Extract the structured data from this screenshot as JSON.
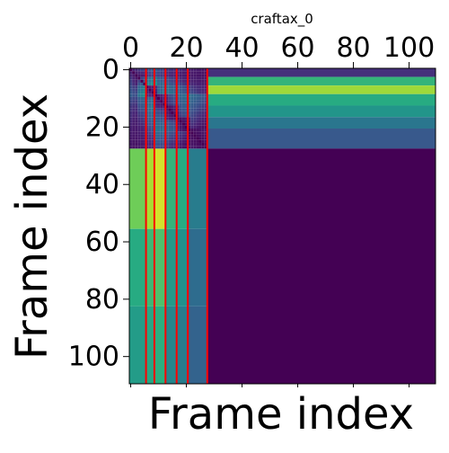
{
  "chart_data": {
    "type": "heatmap",
    "title": "craftax_0",
    "xlabel": "Frame index",
    "ylabel": "Frame index",
    "x_ticks": [
      0,
      20,
      40,
      60,
      80,
      100
    ],
    "y_ticks": [
      0,
      20,
      40,
      60,
      80,
      100
    ],
    "x_minor_ticks": [
      0,
      20,
      40,
      60,
      80,
      100
    ],
    "xlim": [
      -0.5,
      109.5
    ],
    "ylim": [
      109.5,
      -0.5
    ],
    "matrix_size": 110,
    "x_axis_position": "top",
    "colormap": "viridis",
    "grid": false,
    "legend": "none",
    "red_boundaries": [
      5.5,
      8.5,
      12.5,
      16.5,
      20.5,
      27.5
    ],
    "boundary_color": "#ff0000",
    "column_bands": [
      {
        "x0": -0.5,
        "x1": 5.5,
        "values": [
          0.78,
          0.62,
          0.55
        ]
      },
      {
        "x0": 5.5,
        "x1": 8.5,
        "values": [
          0.88,
          0.68,
          0.6
        ]
      },
      {
        "x0": 8.5,
        "x1": 12.5,
        "values": [
          0.94,
          0.72,
          0.64
        ]
      },
      {
        "x0": 12.5,
        "x1": 16.5,
        "values": [
          0.66,
          0.54,
          0.46
        ]
      },
      {
        "x0": 16.5,
        "x1": 20.5,
        "values": [
          0.62,
          0.5,
          0.42
        ]
      },
      {
        "x0": 20.5,
        "x1": 27.5,
        "values": [
          0.42,
          0.36,
          0.32
        ]
      }
    ],
    "right_bands": [
      {
        "y0": -0.5,
        "y1": 2.5,
        "value": 0.16
      },
      {
        "y0": 2.5,
        "y1": 5.5,
        "value": 0.66
      },
      {
        "y0": 5.5,
        "y1": 8.5,
        "value": 0.86
      },
      {
        "y0": 8.5,
        "y1": 12.5,
        "value": 0.62
      },
      {
        "y0": 12.5,
        "y1": 16.5,
        "value": 0.52
      },
      {
        "y0": 16.5,
        "y1": 20.5,
        "value": 0.4
      },
      {
        "y0": 20.5,
        "y1": 27.5,
        "value": 0.28
      },
      {
        "y0": 27.5,
        "y1": 109.5,
        "value": 0.0
      }
    ],
    "upper_left_cells": [
      [
        0.0,
        0.12,
        0.14,
        0.18,
        0.2,
        0.22,
        0.24,
        0.26,
        0.28,
        0.3,
        0.24,
        0.22,
        0.2,
        0.18,
        0.18,
        0.16,
        0.16,
        0.15,
        0.14,
        0.13,
        0.12,
        0.11,
        0.1,
        0.1,
        0.09,
        0.09,
        0.08,
        0.08
      ],
      [
        0.12,
        0.0,
        0.1,
        0.12,
        0.14,
        0.16,
        0.2,
        0.22,
        0.24,
        0.26,
        0.22,
        0.2,
        0.18,
        0.16,
        0.15,
        0.14,
        0.13,
        0.12,
        0.11,
        0.1,
        0.1,
        0.09,
        0.09,
        0.08,
        0.08,
        0.07,
        0.07,
        0.06
      ],
      [
        0.14,
        0.1,
        0.0,
        0.08,
        0.1,
        0.12,
        0.18,
        0.2,
        0.22,
        0.24,
        0.21,
        0.19,
        0.17,
        0.15,
        0.14,
        0.13,
        0.12,
        0.11,
        0.1,
        0.1,
        0.09,
        0.09,
        0.08,
        0.08,
        0.07,
        0.07,
        0.06,
        0.06
      ],
      [
        0.18,
        0.12,
        0.08,
        0.0,
        0.2,
        0.26,
        0.34,
        0.36,
        0.38,
        0.4,
        0.3,
        0.28,
        0.26,
        0.24,
        0.22,
        0.2,
        0.18,
        0.16,
        0.14,
        0.13,
        0.12,
        0.11,
        0.1,
        0.1,
        0.09,
        0.09,
        0.08,
        0.08
      ],
      [
        0.2,
        0.14,
        0.1,
        0.2,
        0.0,
        0.28,
        0.38,
        0.4,
        0.42,
        0.44,
        0.32,
        0.3,
        0.28,
        0.26,
        0.24,
        0.22,
        0.2,
        0.18,
        0.16,
        0.14,
        0.13,
        0.12,
        0.11,
        0.1,
        0.1,
        0.09,
        0.09,
        0.08
      ],
      [
        0.22,
        0.16,
        0.12,
        0.26,
        0.28,
        0.0,
        0.44,
        0.46,
        0.48,
        0.5,
        0.36,
        0.34,
        0.32,
        0.3,
        0.28,
        0.26,
        0.24,
        0.22,
        0.2,
        0.18,
        0.16,
        0.15,
        0.14,
        0.13,
        0.12,
        0.12,
        0.11,
        0.1
      ],
      [
        0.24,
        0.2,
        0.18,
        0.34,
        0.38,
        0.44,
        0.0,
        0.1,
        0.12,
        0.16,
        0.3,
        0.32,
        0.34,
        0.36,
        0.34,
        0.32,
        0.3,
        0.28,
        0.26,
        0.24,
        0.22,
        0.2,
        0.18,
        0.16,
        0.15,
        0.14,
        0.13,
        0.12
      ],
      [
        0.26,
        0.22,
        0.2,
        0.36,
        0.4,
        0.46,
        0.1,
        0.0,
        0.1,
        0.14,
        0.32,
        0.34,
        0.36,
        0.38,
        0.36,
        0.34,
        0.32,
        0.3,
        0.28,
        0.26,
        0.24,
        0.22,
        0.2,
        0.18,
        0.16,
        0.15,
        0.14,
        0.13
      ],
      [
        0.28,
        0.24,
        0.22,
        0.38,
        0.42,
        0.48,
        0.12,
        0.1,
        0.0,
        0.12,
        0.34,
        0.36,
        0.38,
        0.4,
        0.38,
        0.36,
        0.34,
        0.32,
        0.3,
        0.28,
        0.26,
        0.24,
        0.22,
        0.2,
        0.18,
        0.16,
        0.15,
        0.14
      ],
      [
        0.3,
        0.26,
        0.24,
        0.4,
        0.44,
        0.5,
        0.16,
        0.14,
        0.12,
        0.0,
        0.1,
        0.12,
        0.14,
        0.16,
        0.24,
        0.26,
        0.28,
        0.3,
        0.34,
        0.36,
        0.38,
        0.4,
        0.36,
        0.34,
        0.32,
        0.3,
        0.28,
        0.26
      ],
      [
        0.24,
        0.22,
        0.21,
        0.3,
        0.32,
        0.36,
        0.3,
        0.32,
        0.34,
        0.1,
        0.0,
        0.1,
        0.12,
        0.14,
        0.22,
        0.24,
        0.26,
        0.28,
        0.32,
        0.34,
        0.36,
        0.38,
        0.34,
        0.32,
        0.3,
        0.28,
        0.26,
        0.24
      ],
      [
        0.22,
        0.2,
        0.19,
        0.28,
        0.3,
        0.34,
        0.32,
        0.34,
        0.36,
        0.12,
        0.1,
        0.0,
        0.1,
        0.12,
        0.2,
        0.22,
        0.24,
        0.26,
        0.3,
        0.32,
        0.34,
        0.36,
        0.32,
        0.3,
        0.28,
        0.26,
        0.24,
        0.22
      ],
      [
        0.2,
        0.18,
        0.17,
        0.26,
        0.28,
        0.32,
        0.34,
        0.36,
        0.38,
        0.14,
        0.12,
        0.1,
        0.0,
        0.1,
        0.18,
        0.2,
        0.22,
        0.24,
        0.28,
        0.3,
        0.32,
        0.34,
        0.3,
        0.28,
        0.26,
        0.24,
        0.22,
        0.2
      ],
      [
        0.18,
        0.16,
        0.15,
        0.24,
        0.26,
        0.3,
        0.36,
        0.38,
        0.4,
        0.16,
        0.14,
        0.12,
        0.1,
        0.0,
        0.08,
        0.1,
        0.12,
        0.14,
        0.26,
        0.28,
        0.3,
        0.32,
        0.28,
        0.26,
        0.24,
        0.22,
        0.2,
        0.18
      ],
      [
        0.18,
        0.15,
        0.14,
        0.22,
        0.24,
        0.28,
        0.34,
        0.36,
        0.38,
        0.24,
        0.22,
        0.2,
        0.18,
        0.08,
        0.0,
        0.08,
        0.1,
        0.12,
        0.24,
        0.26,
        0.28,
        0.3,
        0.26,
        0.24,
        0.22,
        0.2,
        0.18,
        0.16
      ],
      [
        0.16,
        0.14,
        0.13,
        0.2,
        0.22,
        0.26,
        0.32,
        0.34,
        0.36,
        0.26,
        0.24,
        0.22,
        0.2,
        0.1,
        0.08,
        0.0,
        0.08,
        0.1,
        0.22,
        0.24,
        0.26,
        0.28,
        0.24,
        0.22,
        0.2,
        0.18,
        0.16,
        0.14
      ],
      [
        0.16,
        0.13,
        0.12,
        0.18,
        0.2,
        0.24,
        0.3,
        0.32,
        0.34,
        0.28,
        0.26,
        0.24,
        0.22,
        0.12,
        0.1,
        0.08,
        0.0,
        0.08,
        0.2,
        0.22,
        0.24,
        0.26,
        0.22,
        0.2,
        0.18,
        0.16,
        0.14,
        0.12
      ],
      [
        0.15,
        0.12,
        0.11,
        0.16,
        0.18,
        0.22,
        0.28,
        0.3,
        0.32,
        0.3,
        0.28,
        0.26,
        0.24,
        0.14,
        0.12,
        0.1,
        0.08,
        0.0,
        0.06,
        0.08,
        0.1,
        0.12,
        0.2,
        0.18,
        0.16,
        0.14,
        0.12,
        0.1
      ],
      [
        0.14,
        0.11,
        0.1,
        0.14,
        0.16,
        0.2,
        0.26,
        0.28,
        0.3,
        0.34,
        0.32,
        0.3,
        0.28,
        0.26,
        0.24,
        0.22,
        0.2,
        0.06,
        0.0,
        0.06,
        0.08,
        0.1,
        0.18,
        0.16,
        0.14,
        0.12,
        0.1,
        0.08
      ],
      [
        0.13,
        0.1,
        0.1,
        0.13,
        0.14,
        0.18,
        0.24,
        0.26,
        0.28,
        0.36,
        0.34,
        0.32,
        0.3,
        0.28,
        0.26,
        0.24,
        0.22,
        0.08,
        0.06,
        0.0,
        0.06,
        0.08,
        0.16,
        0.14,
        0.12,
        0.1,
        0.08,
        0.06
      ],
      [
        0.12,
        0.1,
        0.09,
        0.12,
        0.13,
        0.16,
        0.22,
        0.24,
        0.26,
        0.38,
        0.36,
        0.34,
        0.32,
        0.3,
        0.28,
        0.26,
        0.24,
        0.1,
        0.08,
        0.06,
        0.0,
        0.06,
        0.14,
        0.12,
        0.1,
        0.08,
        0.06,
        0.05
      ],
      [
        0.11,
        0.09,
        0.09,
        0.11,
        0.12,
        0.15,
        0.2,
        0.22,
        0.24,
        0.4,
        0.38,
        0.36,
        0.34,
        0.32,
        0.3,
        0.28,
        0.26,
        0.12,
        0.1,
        0.08,
        0.06,
        0.0,
        0.04,
        0.05,
        0.06,
        0.07,
        0.08,
        0.09
      ],
      [
        0.1,
        0.09,
        0.08,
        0.1,
        0.11,
        0.14,
        0.18,
        0.2,
        0.22,
        0.36,
        0.34,
        0.32,
        0.3,
        0.28,
        0.26,
        0.24,
        0.22,
        0.2,
        0.18,
        0.16,
        0.14,
        0.04,
        0.0,
        0.04,
        0.05,
        0.06,
        0.07,
        0.08
      ],
      [
        0.1,
        0.08,
        0.08,
        0.1,
        0.1,
        0.13,
        0.16,
        0.18,
        0.2,
        0.34,
        0.32,
        0.3,
        0.28,
        0.26,
        0.24,
        0.22,
        0.2,
        0.18,
        0.16,
        0.14,
        0.12,
        0.05,
        0.04,
        0.0,
        0.04,
        0.05,
        0.06,
        0.07
      ],
      [
        0.09,
        0.08,
        0.07,
        0.09,
        0.1,
        0.12,
        0.15,
        0.16,
        0.18,
        0.32,
        0.3,
        0.28,
        0.26,
        0.24,
        0.22,
        0.2,
        0.18,
        0.16,
        0.14,
        0.12,
        0.1,
        0.06,
        0.05,
        0.04,
        0.0,
        0.04,
        0.05,
        0.06
      ],
      [
        0.09,
        0.07,
        0.07,
        0.09,
        0.09,
        0.12,
        0.14,
        0.15,
        0.16,
        0.3,
        0.28,
        0.26,
        0.24,
        0.22,
        0.2,
        0.18,
        0.16,
        0.14,
        0.12,
        0.1,
        0.08,
        0.07,
        0.06,
        0.05,
        0.04,
        0.0,
        0.04,
        0.05
      ],
      [
        0.08,
        0.07,
        0.06,
        0.08,
        0.09,
        0.11,
        0.13,
        0.14,
        0.15,
        0.28,
        0.26,
        0.24,
        0.22,
        0.2,
        0.18,
        0.16,
        0.14,
        0.12,
        0.1,
        0.08,
        0.06,
        0.08,
        0.07,
        0.06,
        0.05,
        0.04,
        0.0,
        0.04
      ],
      [
        0.08,
        0.06,
        0.06,
        0.08,
        0.08,
        0.1,
        0.12,
        0.13,
        0.14,
        0.26,
        0.24,
        0.22,
        0.2,
        0.18,
        0.16,
        0.14,
        0.12,
        0.1,
        0.08,
        0.06,
        0.05,
        0.09,
        0.08,
        0.07,
        0.06,
        0.05,
        0.04,
        0.0
      ]
    ]
  }
}
